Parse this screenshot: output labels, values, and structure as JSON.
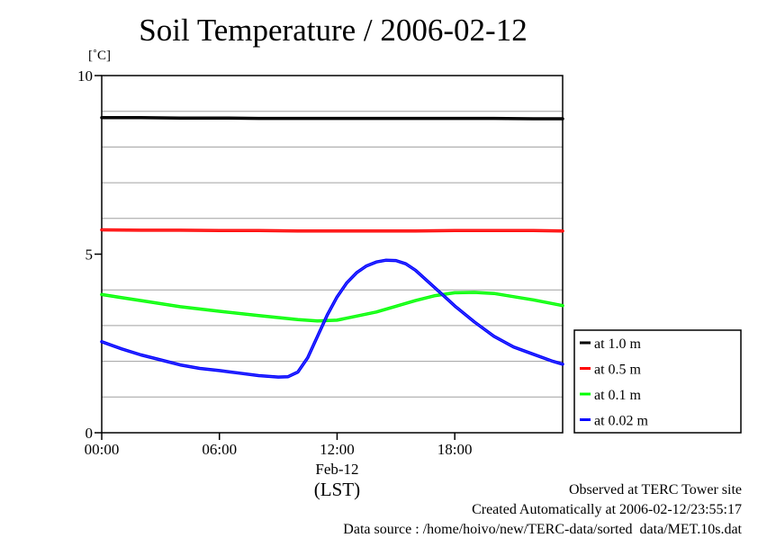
{
  "chart_data": {
    "type": "line",
    "title": "Soil Temperature / 2006-02-12",
    "ylabel": "[˚C]",
    "xlabel_date": "Feb-12",
    "xlabel": "(LST)",
    "ylim": [
      0,
      10
    ],
    "xlim": [
      0,
      23.5
    ],
    "y_ticks": [
      0,
      5,
      10
    ],
    "y_gridlines": [
      1,
      2,
      3,
      4,
      6,
      7,
      8,
      9
    ],
    "x_ticks": [
      {
        "value": 0,
        "label": "00:00"
      },
      {
        "value": 6,
        "label": "06:00"
      },
      {
        "value": 12,
        "label": "12:00"
      },
      {
        "value": 18,
        "label": "18:00"
      }
    ],
    "grid": true,
    "legend_position": "right",
    "series": [
      {
        "name": "at 1.0 m",
        "color": "#000000",
        "x": [
          0,
          2,
          4,
          6,
          8,
          10,
          12,
          14,
          16,
          18,
          20,
          22,
          23.5
        ],
        "y": [
          8.82,
          8.82,
          8.81,
          8.81,
          8.8,
          8.8,
          8.8,
          8.8,
          8.8,
          8.8,
          8.8,
          8.79,
          8.79
        ]
      },
      {
        "name": "at 0.5 m",
        "color": "#ff0000",
        "x": [
          0,
          2,
          4,
          6,
          8,
          10,
          12,
          14,
          16,
          18,
          20,
          22,
          23.5
        ],
        "y": [
          5.68,
          5.67,
          5.67,
          5.66,
          5.66,
          5.65,
          5.65,
          5.65,
          5.65,
          5.66,
          5.66,
          5.66,
          5.65
        ]
      },
      {
        "name": "at 0.1 m",
        "color": "#00ff00",
        "x": [
          0,
          2,
          4,
          6,
          8,
          10,
          11,
          12,
          14,
          16,
          17,
          18,
          19,
          20,
          22,
          23.5
        ],
        "y": [
          3.87,
          3.7,
          3.53,
          3.4,
          3.28,
          3.17,
          3.13,
          3.15,
          3.38,
          3.7,
          3.84,
          3.92,
          3.93,
          3.9,
          3.72,
          3.56
        ]
      },
      {
        "name": "at 0.02 m",
        "color": "#0000ff",
        "x": [
          0,
          1,
          2,
          3,
          4,
          5,
          6,
          7,
          8,
          9,
          9.5,
          10,
          10.5,
          11,
          11.5,
          12,
          12.5,
          13,
          13.5,
          14,
          14.5,
          15,
          15.5,
          16,
          16.5,
          17,
          17.5,
          18,
          19,
          20,
          21,
          22,
          23,
          23.5
        ],
        "y": [
          2.55,
          2.35,
          2.18,
          2.04,
          1.9,
          1.8,
          1.74,
          1.67,
          1.6,
          1.56,
          1.57,
          1.7,
          2.1,
          2.7,
          3.3,
          3.8,
          4.2,
          4.48,
          4.67,
          4.78,
          4.83,
          4.82,
          4.73,
          4.55,
          4.3,
          4.05,
          3.8,
          3.55,
          3.1,
          2.7,
          2.4,
          2.2,
          2.0,
          1.92
        ]
      }
    ]
  },
  "footer": {
    "observed": "Observed at TERC Tower site",
    "created": "Created Automatically at 2006-02-12/23:55:17",
    "source": "Data source : /home/hoivo/new/TERC-data/sorted  data/MET.10s.dat"
  }
}
